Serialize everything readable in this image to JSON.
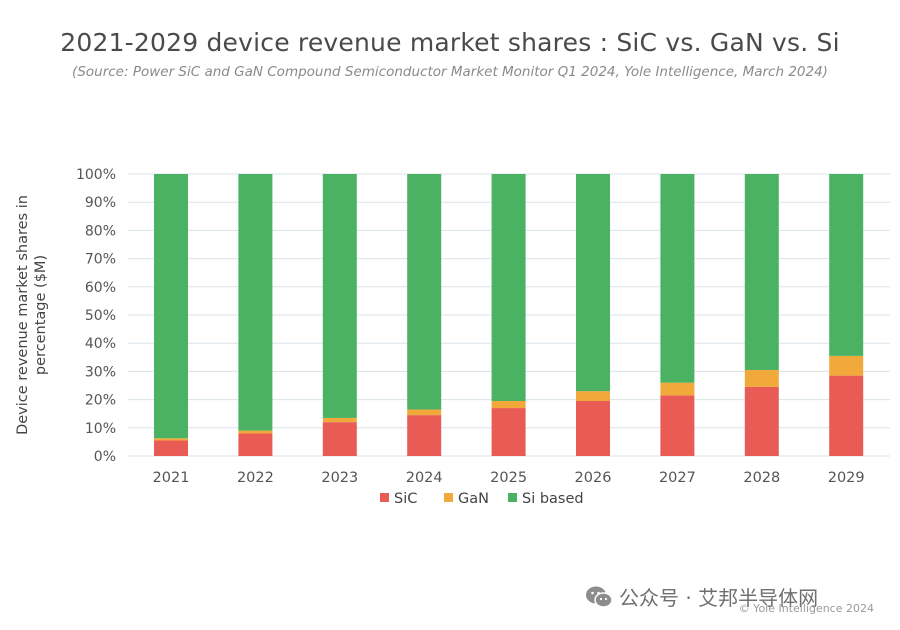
{
  "header": {
    "title": "2021-2029 device revenue market shares : SiC vs. GaN vs. Si",
    "subtitle": "(Source: Power SiC and GaN Compound Semiconductor Market Monitor Q1 2024, Yole Intelligence, March 2024)"
  },
  "footer": {
    "watermark": "公众号 · 艾邦半导体网",
    "copyright": "© Yole Intelligence 2024"
  },
  "colors": {
    "sic": "#e85c55",
    "gan": "#f2a93b",
    "si": "#4bb163",
    "grid": "#d9e4ea",
    "axis_text": "#555555"
  },
  "chart_data": {
    "type": "bar",
    "stacked": true,
    "title": "2021-2029 device revenue market shares : SiC vs. GaN vs. Si",
    "xlabel": "",
    "ylabel": "Device revenue market shares  in percentage ($M)",
    "ylim": [
      0,
      100
    ],
    "yticks": [
      "0%",
      "10%",
      "20%",
      "30%",
      "40%",
      "50%",
      "60%",
      "70%",
      "80%",
      "90%",
      "100%"
    ],
    "categories": [
      "2021",
      "2022",
      "2023",
      "2024",
      "2025",
      "2026",
      "2027",
      "2028",
      "2029"
    ],
    "series": [
      {
        "name": "SiC",
        "values": [
          5.5,
          8,
          12,
          14.5,
          17,
          19.5,
          21.5,
          24.5,
          28.5
        ]
      },
      {
        "name": "GaN",
        "values": [
          0.8,
          1,
          1.5,
          2,
          2.5,
          3.5,
          4.5,
          6,
          7
        ]
      },
      {
        "name": "Si based",
        "values": [
          93.7,
          91,
          86.5,
          83.5,
          80.5,
          77,
          74,
          69.5,
          64.5
        ]
      }
    ],
    "legend": "bottom-center",
    "grid": true
  }
}
